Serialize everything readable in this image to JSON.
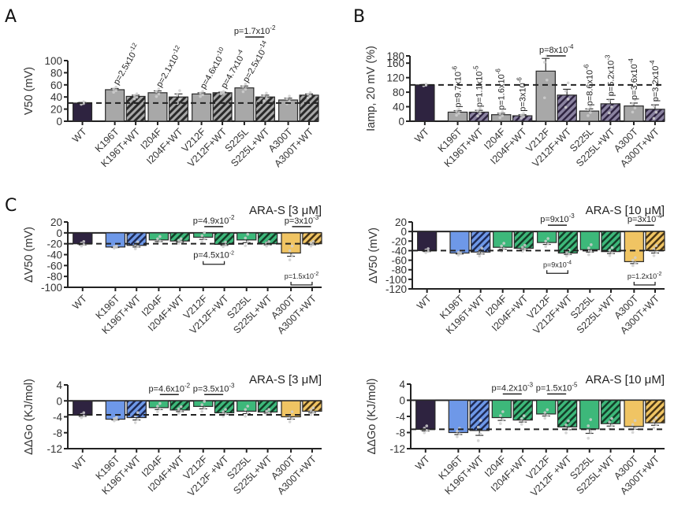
{
  "panel_letters": [
    "A",
    "B",
    "C"
  ],
  "colors": {
    "wt": "#2e2340",
    "gray": "#a8a8a8",
    "blue": "#6e98e8",
    "green": "#3db87a",
    "yellow": "#f0c463",
    "hatch_dark": "#2a2a2a",
    "dots": "#cfcfcf"
  },
  "chart_data": [
    {
      "id": "A",
      "type": "bar",
      "title": "",
      "ylabel": "V50 (mV)",
      "ylim": [
        0,
        100
      ],
      "yticks": [
        0,
        20,
        40,
        60,
        80,
        100
      ],
      "reference_line": 30,
      "categories": [
        "WT",
        "K196T",
        "K196T+WT",
        "I204F",
        "I204F+WT",
        "V212F",
        "V212F+WT",
        "S225L",
        "S225L+WT",
        "A300T",
        "A300T+WT"
      ],
      "values": [
        30,
        52,
        41,
        47,
        40,
        45,
        47,
        55,
        40,
        35,
        43
      ],
      "errors": [
        1,
        2,
        2,
        3,
        5,
        2,
        1,
        3,
        3,
        3,
        2
      ],
      "fills": [
        "wt",
        "gray",
        "gray-hatch",
        "gray",
        "gray-hatch",
        "gray",
        "gray-hatch",
        "gray",
        "gray-hatch",
        "gray",
        "gray-hatch"
      ],
      "pvalues": [
        {
          "text": "p=2.5x10",
          "exp": "-12",
          "at": 1,
          "rot": true
        },
        {
          "text": "p=2.1x10",
          "exp": "-12",
          "at": 3,
          "rot": true
        },
        {
          "text": "p=4.6x10",
          "exp": "-10",
          "at": 5,
          "rot": true
        },
        {
          "text": "p=4.7x10",
          "exp": "-4",
          "at": 6,
          "rot": true
        },
        {
          "text": "p=2.5x10",
          "exp": "-14",
          "at": 7,
          "rot": true
        },
        {
          "text": "p=1.7x10",
          "exp": "-2",
          "bracket": [
            7,
            8
          ],
          "pos": "top"
        }
      ]
    },
    {
      "id": "B",
      "type": "bar",
      "title": "",
      "ylabel": "Iamp, 20 mV (%)",
      "ylim": [
        0,
        180
      ],
      "yticks": [
        0,
        40,
        80,
        120,
        160,
        180
      ],
      "reference_line": 100,
      "categories": [
        "WT",
        "K196T",
        "K196T+WT",
        "I204F",
        "I204F+WT",
        "V212F",
        "V212F+WT",
        "S225L",
        "S225L+WT",
        "A300T",
        "A300T+WT"
      ],
      "values": [
        100,
        25,
        25,
        18,
        15,
        138,
        72,
        28,
        48,
        42,
        33
      ],
      "errors": [
        1,
        4,
        5,
        4,
        3,
        35,
        16,
        6,
        12,
        8,
        12
      ],
      "fills": [
        "wt",
        "gray",
        "purple-hatch",
        "gray",
        "purple-hatch",
        "gray",
        "purple-hatch",
        "gray",
        "purple-hatch",
        "gray",
        "purple-hatch"
      ],
      "pvalues": [
        {
          "text": "p=9.7x10",
          "exp": "-6",
          "at": 1,
          "rot": true
        },
        {
          "text": "p=1.1x10",
          "exp": "-5",
          "at": 2,
          "rot": true
        },
        {
          "text": "p=1.6x10",
          "exp": "-6",
          "at": 3,
          "rot": true
        },
        {
          "text": "p=3x10",
          "exp": "-6",
          "at": 4,
          "rot": true
        },
        {
          "text": "p=8x10",
          "exp": "-4",
          "bracket": [
            5,
            6
          ],
          "pos": "top"
        },
        {
          "text": "p=8.6x10",
          "exp": "-6",
          "at": 7,
          "rot": true
        },
        {
          "text": "p=5.2x10",
          "exp": "-3",
          "at": 8,
          "rot": true
        },
        {
          "text": "p=3.6x10",
          "exp": "-4",
          "at": 9,
          "rot": true
        },
        {
          "text": "p=3.2x10",
          "exp": "-4",
          "at": 10,
          "rot": true
        }
      ]
    },
    {
      "id": "C1",
      "type": "bar",
      "title": "ARA-S [3 μM]",
      "ylabel": "ΔV50 (mV)",
      "ylim": [
        -100,
        20
      ],
      "yticks": [
        -100,
        -80,
        -60,
        -40,
        -20,
        0,
        20
      ],
      "reference_line": -20,
      "categories": [
        "WT",
        "K196T",
        "K196T+WT",
        "I204F",
        "I204F+WT",
        "V212F",
        "V212F+WT",
        "S225L",
        "S225L+WT",
        "A300T",
        "A300T+WT"
      ],
      "values": [
        -20,
        -26,
        -23,
        -13,
        -15,
        -8,
        -21,
        -13,
        -20,
        -37,
        -20
      ],
      "errors": [
        2,
        1,
        3,
        3,
        2,
        4,
        2,
        5,
        2,
        6,
        2
      ],
      "fills": [
        "wt",
        "blue",
        "blue-hatch",
        "green",
        "green-hatch",
        "green",
        "green-hatch",
        "green",
        "green-hatch",
        "yellow",
        "yellow-hatch"
      ],
      "pvalues": [
        {
          "text": "p=4.9x10",
          "exp": "-2",
          "bracket": [
            5,
            6
          ],
          "pos": "top"
        },
        {
          "text": "p=4.5x10",
          "exp": "-2",
          "bracket": [
            5,
            6
          ],
          "pos": "bottom"
        },
        {
          "text": "p=3x10",
          "exp": "-3",
          "bracket": [
            9,
            10
          ],
          "pos": "top"
        },
        {
          "text": "p=1.5x10",
          "exp": "-2",
          "bracket": [
            9,
            10
          ],
          "pos": "bottom"
        }
      ]
    },
    {
      "id": "C2",
      "type": "bar",
      "title": "ARA-S [10 μM]",
      "ylabel": "ΔV50 (mV)",
      "ylim": [
        -120,
        20
      ],
      "yticks": [
        -120,
        -100,
        -80,
        -60,
        -40,
        -20,
        0,
        20
      ],
      "reference_line": -40,
      "categories": [
        "WT",
        "K196T",
        "K196T+WT",
        "I204F",
        "I204F+WT",
        "V212F",
        "V212F+WT",
        "S225L",
        "S225L+WT",
        "A300T",
        "A300T+WT"
      ],
      "values": [
        -40,
        -45,
        -43,
        -33,
        -35,
        -23,
        -45,
        -38,
        -42,
        -63,
        -40
      ],
      "errors": [
        2,
        2,
        4,
        4,
        3,
        4,
        3,
        5,
        4,
        4,
        5
      ],
      "fills": [
        "wt",
        "blue",
        "blue-hatch",
        "green",
        "green-hatch",
        "green",
        "green-hatch",
        "green",
        "green-hatch",
        "yellow",
        "yellow-hatch"
      ],
      "pvalues": [
        {
          "text": "p=9x10",
          "exp": "-3",
          "bracket": [
            5,
            6
          ],
          "pos": "top"
        },
        {
          "text": "p=9x10",
          "exp": "-4",
          "bracket": [
            5,
            6
          ],
          "pos": "bottom"
        },
        {
          "text": "p=3x10",
          "exp": "-4",
          "bracket": [
            9,
            10
          ],
          "pos": "top"
        },
        {
          "text": "p=1.2x10",
          "exp": "-2",
          "bracket": [
            9,
            10
          ],
          "pos": "bottom"
        }
      ]
    },
    {
      "id": "C3",
      "type": "bar",
      "title": "ARA-S [3 μM]",
      "ylabel": "ΔΔGo (KJ/mol)",
      "ylim": [
        -12,
        4
      ],
      "yticks": [
        -12,
        -8,
        -4,
        0,
        4
      ],
      "reference_line": -3.5,
      "categories": [
        "WT",
        "K196T",
        "K196T+WT",
        "I204F",
        "I204F+WT",
        "V212F",
        "V212F +WT",
        "S225L",
        "S225L+WT",
        "A300T",
        "A300T+WT"
      ],
      "values": [
        -3.6,
        -4.6,
        -4.2,
        -1.7,
        -2.3,
        -1.4,
        -3.0,
        -2.6,
        -2.8,
        -4.0,
        -2.6
      ],
      "errors": [
        0.3,
        0.2,
        0.6,
        0.5,
        0.4,
        0.6,
        0.4,
        0.6,
        0.3,
        0.6,
        0.4
      ],
      "fills": [
        "wt",
        "blue",
        "blue-hatch",
        "green",
        "green-hatch",
        "green",
        "green-hatch",
        "green",
        "green-hatch",
        "yellow",
        "yellow-hatch"
      ],
      "pvalues": [
        {
          "text": "p=4.6x10",
          "exp": "-2",
          "bracket": [
            3,
            4
          ],
          "pos": "top"
        },
        {
          "text": "p=3.5x10",
          "exp": "-3",
          "bracket": [
            5,
            6
          ],
          "pos": "top"
        }
      ]
    },
    {
      "id": "C4",
      "type": "bar",
      "title": "ARA-S [10 μM]",
      "ylabel": "ΔΔGo (KJ/mol)",
      "ylim": [
        -12,
        4
      ],
      "yticks": [
        -12,
        -8,
        -4,
        0,
        4
      ],
      "reference_line": -7.2,
      "categories": [
        "WT",
        "K196T",
        "K196T+WT",
        "I204F",
        "I204F+WT",
        "V212F",
        "V212F +WT",
        "S225L",
        "S225L+WT",
        "A300T",
        "A300T+WT"
      ],
      "values": [
        -7.2,
        -8.0,
        -7.5,
        -4.3,
        -4.9,
        -3.4,
        -6.6,
        -7.1,
        -5.8,
        -6.5,
        -5.6
      ],
      "errors": [
        0.4,
        0.5,
        1.2,
        0.7,
        0.5,
        0.5,
        0.7,
        1.1,
        0.6,
        0.7,
        0.6
      ],
      "fills": [
        "wt",
        "blue",
        "blue-hatch",
        "green",
        "green-hatch",
        "green",
        "green-hatch",
        "green",
        "green-hatch",
        "yellow",
        "yellow-hatch"
      ],
      "pvalues": [
        {
          "text": "p=4.2x10",
          "exp": "-3",
          "bracket": [
            3,
            4
          ],
          "pos": "top"
        },
        {
          "text": "p=1.5x10",
          "exp": "-5",
          "bracket": [
            5,
            6
          ],
          "pos": "top"
        }
      ]
    }
  ]
}
